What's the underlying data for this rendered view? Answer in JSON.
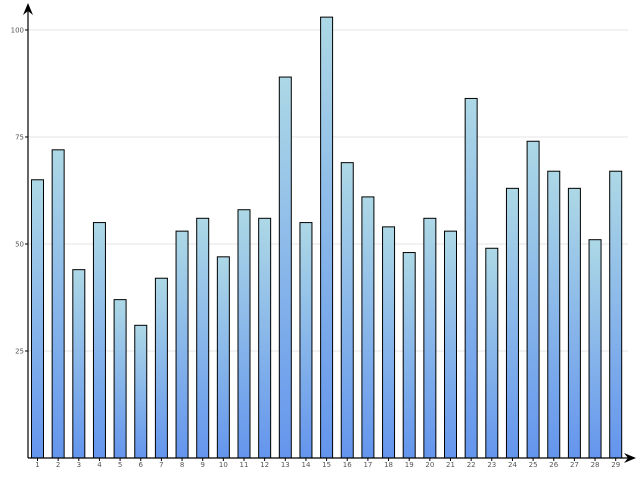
{
  "chart_data": {
    "type": "bar",
    "title": "",
    "xlabel": "",
    "ylabel": "",
    "categories": [
      "1",
      "2",
      "3",
      "4",
      "5",
      "6",
      "7",
      "8",
      "9",
      "10",
      "11",
      "12",
      "13",
      "14",
      "15",
      "16",
      "17",
      "18",
      "19",
      "20",
      "21",
      "22",
      "23",
      "24",
      "25",
      "26",
      "27",
      "28",
      "29"
    ],
    "values": [
      65,
      72,
      44,
      55,
      37,
      31,
      42,
      53,
      56,
      47,
      58,
      56,
      89,
      55,
      103,
      69,
      61,
      54,
      48,
      56,
      53,
      84,
      49,
      63,
      74,
      67,
      63,
      51,
      67
    ],
    "ylim": [
      0,
      107
    ],
    "yticks": [
      25,
      50,
      75,
      100
    ],
    "ytick_labels": [
      "25",
      "50",
      "75",
      "100"
    ],
    "grid": true,
    "legend": "none",
    "colors": {
      "bar_top": "#add8e6",
      "bar_bottom": "#6495ed",
      "grid": "#e4e4e4",
      "axis": "#000000"
    }
  }
}
